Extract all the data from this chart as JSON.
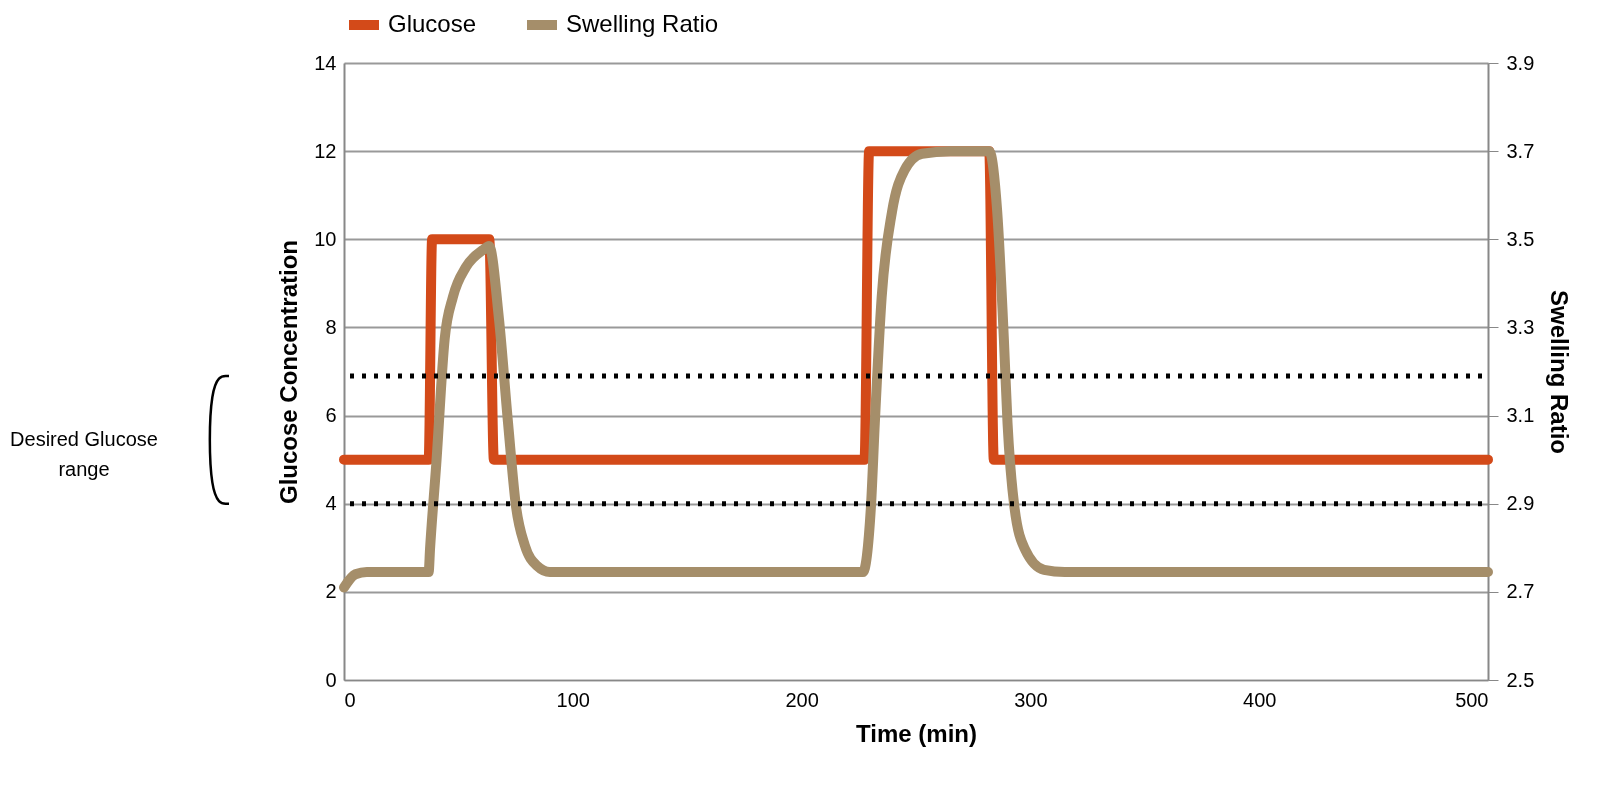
{
  "chart_data": {
    "type": "line",
    "xlabel": "Time (min)",
    "ylabel": "Glucose Concentration",
    "y2label": "Swelling Ratio",
    "xlim": [
      0,
      500
    ],
    "xticks": [
      0,
      100,
      200,
      300,
      400,
      500
    ],
    "ylim": [
      0,
      14
    ],
    "yticks": [
      0,
      2,
      4,
      6,
      8,
      10,
      12,
      14
    ],
    "y2lim": [
      2.5,
      3.9
    ],
    "y2ticks": [
      2.5,
      2.7,
      2.9,
      3.1,
      3.3,
      3.5,
      3.7,
      3.9
    ],
    "grid": "y",
    "legend": "top",
    "marker": "none",
    "line_style": "solid",
    "series": [
      {
        "name": "Glucose",
        "color": "#d34a19",
        "x": [
          0,
          37,
          38.5,
          63.5,
          65.5,
          227.5,
          229.5,
          282,
          284,
          500
        ],
        "values": [
          5,
          5,
          10,
          10,
          5,
          5,
          12,
          12,
          5,
          5
        ]
      },
      {
        "name": "Swelling Ratio",
        "color": "#a58e6a",
        "axis": "y2",
        "x": [
          0,
          5,
          10,
          37,
          37.6,
          40.3,
          44,
          47.6,
          53.3,
          60.8,
          63.4,
          67.7,
          71.7,
          75.2,
          79,
          84.4,
          90,
          95,
          226.8,
          230.3,
          232,
          235,
          239.5,
          245,
          252.6,
          265,
          282,
          285.5,
          288.4,
          290,
          293,
          297.6,
          306,
          315,
          500
        ],
        "values": [
          2.71,
          2.74,
          2.745,
          2.745,
          2.797,
          2.988,
          3.274,
          3.369,
          3.437,
          3.476,
          3.485,
          3.321,
          3.083,
          2.893,
          2.806,
          2.759,
          2.745,
          2.745,
          2.745,
          2.893,
          3.083,
          3.369,
          3.562,
          3.657,
          3.694,
          3.7,
          3.7,
          3.562,
          3.274,
          3.083,
          2.893,
          2.797,
          2.75,
          2.745,
          2.745
        ]
      }
    ],
    "ref_lines": [
      {
        "axis": "y2",
        "value": 3.19,
        "color": "#000000",
        "line_style": "dotted"
      },
      {
        "axis": "y2",
        "value": 2.9,
        "color": "#000000",
        "line_style": "dotted"
      }
    ],
    "annotations": [
      "Desired Glucose range"
    ]
  }
}
